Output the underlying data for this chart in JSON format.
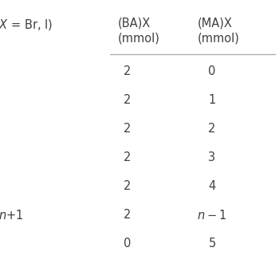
{
  "header_label": "X = Br, I)",
  "col1_header": "(BA)X\n(mmol)",
  "col2_header": "(MA)X\n(mmol)",
  "rows": [
    {
      "col0": "",
      "col1": "2",
      "col2": "0"
    },
    {
      "col0": "",
      "col1": "2",
      "col2": "1"
    },
    {
      "col0": "",
      "col1": "2",
      "col2": "2"
    },
    {
      "col0": "",
      "col1": "2",
      "col2": "3"
    },
    {
      "col0": "",
      "col1": "2",
      "col2": "4"
    },
    {
      "col0": "n+1",
      "col1": "2",
      "col2": "n-1"
    },
    {
      "col0": "",
      "col1": "0",
      "col2": "5"
    }
  ],
  "bg_color": "#ffffff",
  "text_color": "#404040",
  "line_color": "#aaaaaa",
  "font_size": 10.5,
  "header_font_size": 10.5
}
